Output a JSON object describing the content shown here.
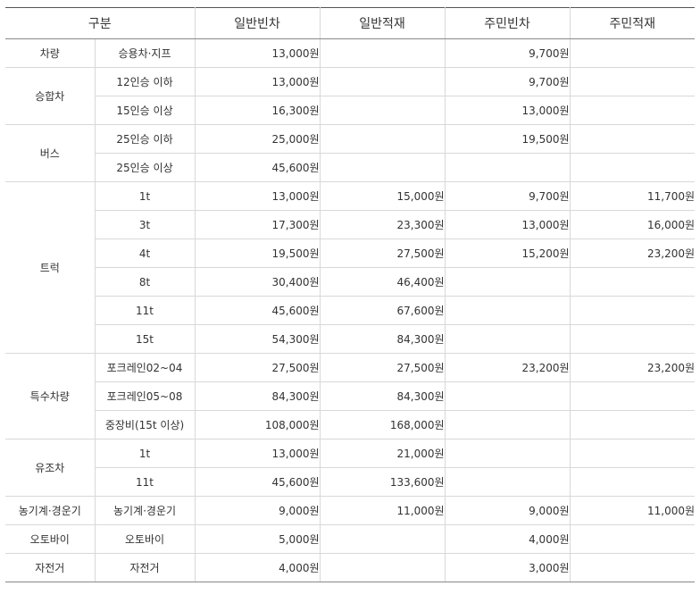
{
  "header": {
    "category": "구분",
    "cols": [
      "일반빈차",
      "일반적재",
      "주민빈차",
      "주민적재"
    ]
  },
  "groups": [
    {
      "name": "차량",
      "rows": [
        {
          "sub": "승용차·지프",
          "values": [
            "13,000원",
            "",
            "9,700원",
            ""
          ]
        }
      ]
    },
    {
      "name": "승합차",
      "rows": [
        {
          "sub": "12인승 이하",
          "values": [
            "13,000원",
            "",
            "9,700원",
            ""
          ]
        },
        {
          "sub": "15인승 이상",
          "values": [
            "16,300원",
            "",
            "13,000원",
            ""
          ]
        }
      ]
    },
    {
      "name": "버스",
      "rows": [
        {
          "sub": "25인승 이하",
          "values": [
            "25,000원",
            "",
            "19,500원",
            ""
          ]
        },
        {
          "sub": "25인승 이상",
          "values": [
            "45,600원",
            "",
            "",
            ""
          ]
        }
      ]
    },
    {
      "name": "트럭",
      "rows": [
        {
          "sub": "1t",
          "values": [
            "13,000원",
            "15,000원",
            "9,700원",
            "11,700원"
          ]
        },
        {
          "sub": "3t",
          "values": [
            "17,300원",
            "23,300원",
            "13,000원",
            "16,000원"
          ]
        },
        {
          "sub": "4t",
          "values": [
            "19,500원",
            "27,500원",
            "15,200원",
            "23,200원"
          ]
        },
        {
          "sub": "8t",
          "values": [
            "30,400원",
            "46,400원",
            "",
            ""
          ]
        },
        {
          "sub": "11t",
          "values": [
            "45,600원",
            "67,600원",
            "",
            ""
          ]
        },
        {
          "sub": "15t",
          "values": [
            "54,300원",
            "84,300원",
            "",
            ""
          ]
        }
      ]
    },
    {
      "name": "특수차량",
      "rows": [
        {
          "sub": "포크레인02~04",
          "values": [
            "27,500원",
            "27,500원",
            "23,200원",
            "23,200원"
          ]
        },
        {
          "sub": "포크레인05~08",
          "values": [
            "84,300원",
            "84,300원",
            "",
            ""
          ]
        },
        {
          "sub": "중장비(15t 이상)",
          "values": [
            "108,000원",
            "168,000원",
            "",
            ""
          ]
        }
      ]
    },
    {
      "name": "유조차",
      "rows": [
        {
          "sub": "1t",
          "values": [
            "13,000원",
            "21,000원",
            "",
            ""
          ]
        },
        {
          "sub": "11t",
          "values": [
            "45,600원",
            "133,600원",
            "",
            ""
          ]
        }
      ]
    },
    {
      "name": "농기계·경운기",
      "rows": [
        {
          "sub": "농기계·경운기",
          "values": [
            "9,000원",
            "11,000원",
            "9,000원",
            "11,000원"
          ]
        }
      ]
    },
    {
      "name": "오토바이",
      "rows": [
        {
          "sub": "오토바이",
          "values": [
            "5,000원",
            "",
            "4,000원",
            ""
          ]
        }
      ]
    },
    {
      "name": "자전거",
      "rows": [
        {
          "sub": "자전거",
          "values": [
            "4,000원",
            "",
            "3,000원",
            ""
          ]
        }
      ]
    }
  ]
}
